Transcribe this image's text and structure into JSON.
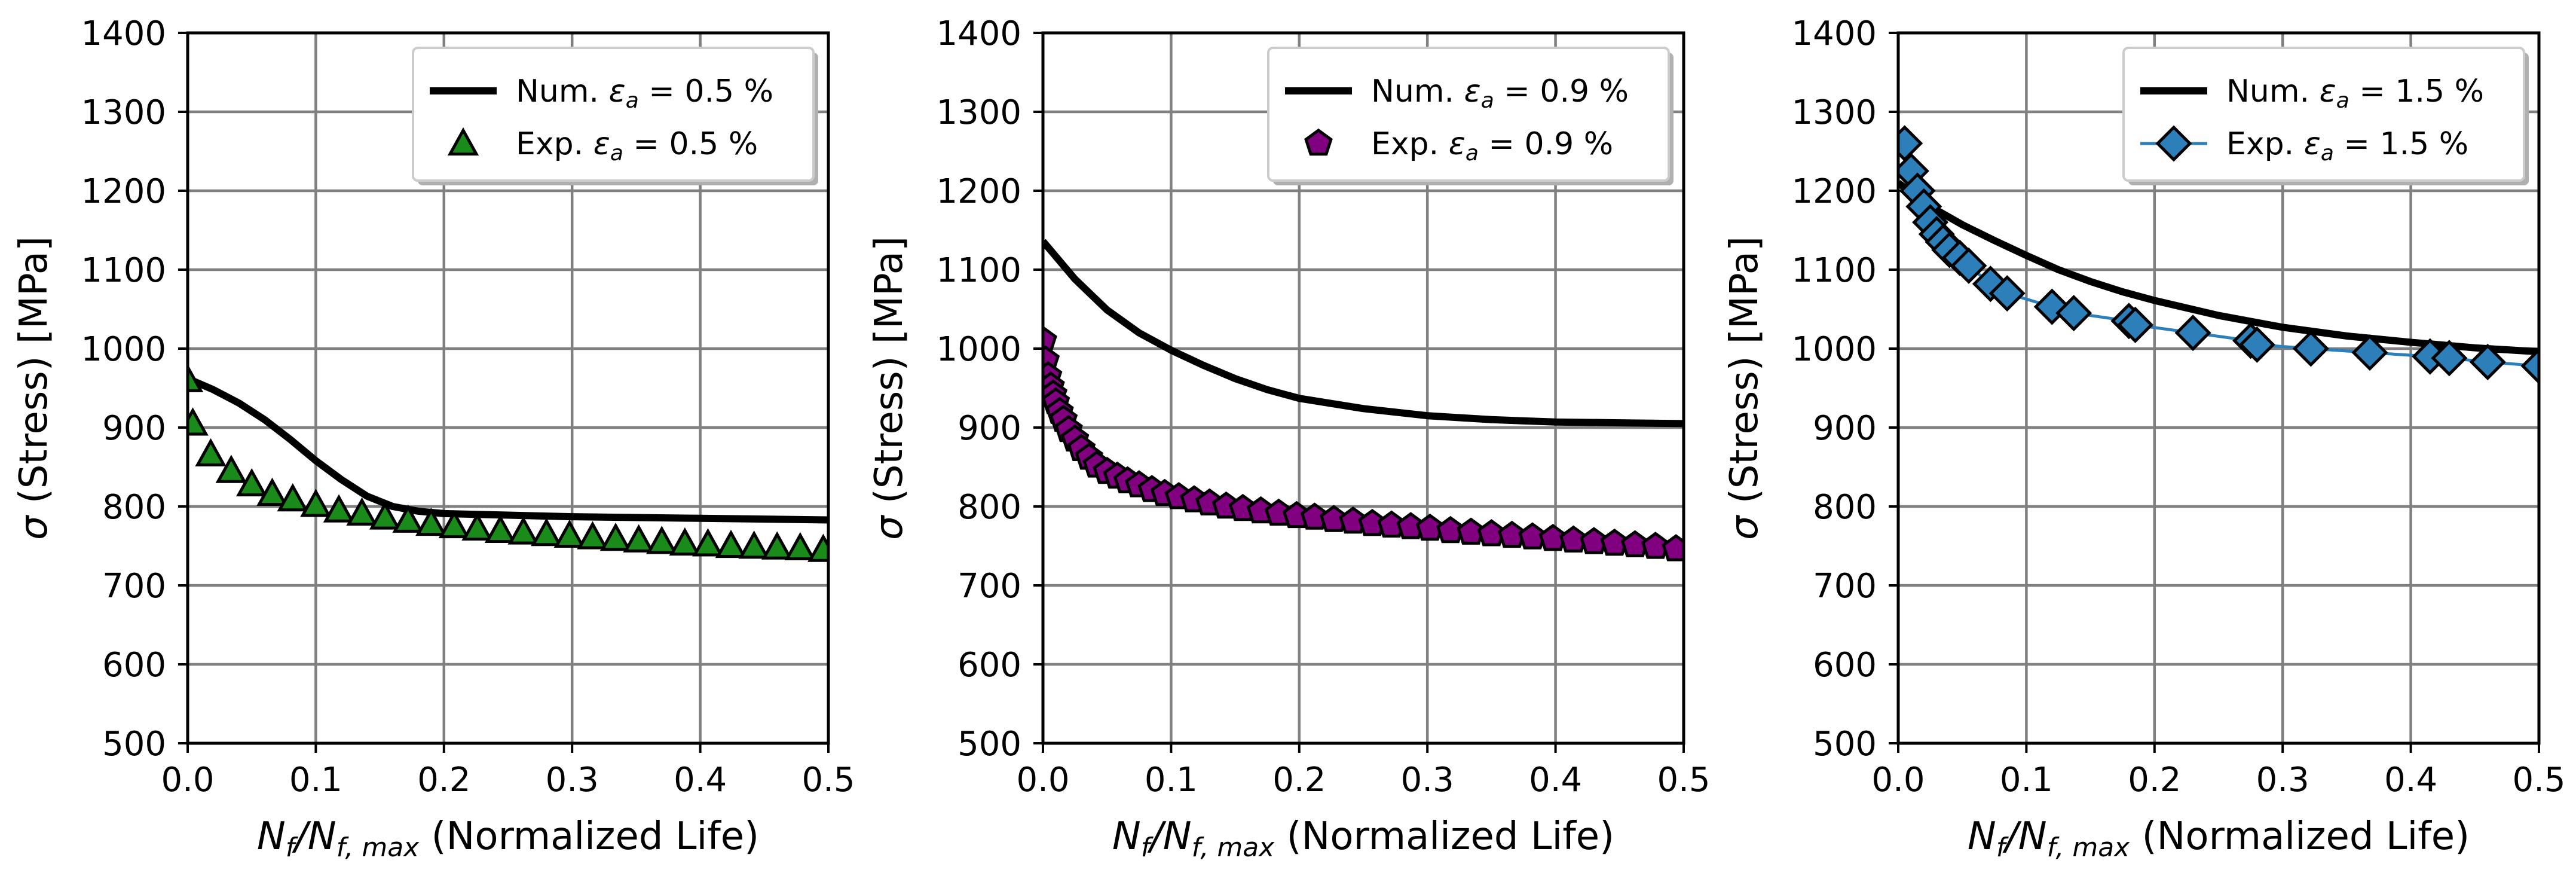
{
  "chart_data": [
    {
      "type": "line",
      "panel": "left",
      "xlabel": {
        "main": "N",
        "sub1": "f",
        "mid": "/N",
        "sub2": "f, max",
        "suffix": " (Normalized Life)"
      },
      "ylabel": {
        "sigma": "σ",
        "text": " (Stress) [MPa]"
      },
      "xlim": [
        0.0,
        0.5
      ],
      "ylim": [
        500,
        1400
      ],
      "xticks": [
        "0.0",
        "0.1",
        "0.2",
        "0.3",
        "0.4",
        "0.5"
      ],
      "yticks": [
        "500",
        "600",
        "700",
        "800",
        "900",
        "1000",
        "1100",
        "1200",
        "1300",
        "1400"
      ],
      "grid": true,
      "legend_position": "top-right",
      "legend": [
        {
          "prefix": "Num. ",
          "eps": "ε",
          "sub": "a",
          "suffix": " = 0.5 %"
        },
        {
          "prefix": "Exp. ",
          "eps": "ε",
          "sub": "a",
          "suffix": " = 0.5 %"
        }
      ],
      "colors": {
        "num_line": "#000000",
        "exp_marker": "#1a8a1a",
        "exp_line": "#2c7fb8"
      },
      "marker": "triangle",
      "exp_connecting_line": false,
      "series": [
        {
          "name": "Num.",
          "x": [
            0.0,
            0.02,
            0.04,
            0.06,
            0.08,
            0.1,
            0.12,
            0.14,
            0.16,
            0.18,
            0.2,
            0.25,
            0.3,
            0.35,
            0.4,
            0.45,
            0.5
          ],
          "y": [
            962,
            948,
            931,
            910,
            885,
            858,
            834,
            813,
            800,
            794,
            791,
            789,
            787,
            786,
            785,
            784,
            783
          ]
        },
        {
          "name": "Exp.",
          "x": [
            0.0,
            0.004,
            0.018,
            0.034,
            0.05,
            0.066,
            0.082,
            0.1,
            0.118,
            0.136,
            0.154,
            0.172,
            0.19,
            0.208,
            0.226,
            0.244,
            0.262,
            0.28,
            0.298,
            0.316,
            0.334,
            0.352,
            0.37,
            0.388,
            0.406,
            0.424,
            0.442,
            0.46,
            0.478,
            0.496
          ],
          "y": [
            960,
            905,
            866,
            845,
            828,
            816,
            809,
            802,
            795,
            791,
            786,
            782,
            778,
            775,
            772,
            769,
            767,
            765,
            763,
            761,
            759,
            757,
            755,
            753,
            752,
            750,
            749,
            748,
            747,
            745
          ]
        }
      ]
    },
    {
      "type": "line",
      "panel": "middle",
      "xlabel": {
        "main": "N",
        "sub1": "f",
        "mid": "/N",
        "sub2": "f, max",
        "suffix": " (Normalized Life)"
      },
      "ylabel": {
        "sigma": "σ",
        "text": " (Stress) [MPa]"
      },
      "xlim": [
        0.0,
        0.5
      ],
      "ylim": [
        500,
        1400
      ],
      "xticks": [
        "0.0",
        "0.1",
        "0.2",
        "0.3",
        "0.4",
        "0.5"
      ],
      "yticks": [
        "500",
        "600",
        "700",
        "800",
        "900",
        "1000",
        "1100",
        "1200",
        "1300",
        "1400"
      ],
      "grid": true,
      "legend_position": "top-right",
      "legend": [
        {
          "prefix": "Num. ",
          "eps": "ε",
          "sub": "a",
          "suffix": " = 0.9 %"
        },
        {
          "prefix": "Exp. ",
          "eps": "ε",
          "sub": "a",
          "suffix": " = 0.9 %"
        }
      ],
      "colors": {
        "num_line": "#000000",
        "exp_marker": "#800080",
        "exp_line": "#2c7fb8"
      },
      "marker": "pentagon",
      "exp_connecting_line": false,
      "series": [
        {
          "name": "Num.",
          "x": [
            0.0,
            0.025,
            0.05,
            0.075,
            0.1,
            0.125,
            0.15,
            0.175,
            0.2,
            0.25,
            0.3,
            0.35,
            0.4,
            0.45,
            0.5
          ],
          "y": [
            1136,
            1088,
            1049,
            1020,
            998,
            979,
            962,
            948,
            937,
            924,
            915,
            910,
            907,
            906,
            905
          ]
        },
        {
          "name": "Exp.",
          "x": [
            0.0,
            0.002,
            0.004,
            0.006,
            0.008,
            0.01,
            0.013,
            0.016,
            0.02,
            0.025,
            0.03,
            0.036,
            0.042,
            0.05,
            0.058,
            0.066,
            0.075,
            0.085,
            0.095,
            0.106,
            0.118,
            0.13,
            0.143,
            0.156,
            0.17,
            0.184,
            0.198,
            0.212,
            0.227,
            0.242,
            0.257,
            0.272,
            0.287,
            0.302,
            0.318,
            0.334,
            0.35,
            0.366,
            0.382,
            0.398,
            0.414,
            0.43,
            0.446,
            0.462,
            0.478,
            0.494
          ],
          "y": [
            1010,
            985,
            965,
            952,
            942,
            932,
            920,
            910,
            897,
            885,
            873,
            862,
            852,
            844,
            838,
            832,
            827,
            821,
            816,
            812,
            808,
            804,
            800,
            797,
            794,
            791,
            788,
            786,
            783,
            781,
            778,
            776,
            774,
            772,
            769,
            767,
            765,
            763,
            761,
            759,
            757,
            755,
            753,
            751,
            749,
            746
          ]
        }
      ]
    },
    {
      "type": "line",
      "panel": "right",
      "xlabel": {
        "main": "N",
        "sub1": "f",
        "mid": "/N",
        "sub2": "f, max",
        "suffix": " (Normalized Life)"
      },
      "ylabel": {
        "sigma": "σ",
        "text": " (Stress) [MPa]"
      },
      "xlim": [
        0.0,
        0.5
      ],
      "ylim": [
        500,
        1400
      ],
      "xticks": [
        "0.0",
        "0.1",
        "0.2",
        "0.3",
        "0.4",
        "0.5"
      ],
      "yticks": [
        "500",
        "600",
        "700",
        "800",
        "900",
        "1000",
        "1100",
        "1200",
        "1300",
        "1400"
      ],
      "grid": true,
      "legend_position": "top-right",
      "legend": [
        {
          "prefix": "Num. ",
          "eps": "ε",
          "sub": "a",
          "suffix": " = 1.5 %"
        },
        {
          "prefix": "Exp. ",
          "eps": "ε",
          "sub": "a",
          "suffix": " = 1.5 %"
        }
      ],
      "colors": {
        "num_line": "#000000",
        "exp_marker": "#2c7fb8",
        "exp_line": "#2c7fb8"
      },
      "marker": "diamond",
      "exp_connecting_line": true,
      "series": [
        {
          "name": "Num.",
          "x": [
            0.0,
            0.025,
            0.05,
            0.075,
            0.1,
            0.125,
            0.15,
            0.175,
            0.2,
            0.25,
            0.3,
            0.35,
            0.4,
            0.45,
            0.5
          ],
          "y": [
            1210,
            1180,
            1157,
            1137,
            1118,
            1100,
            1085,
            1072,
            1061,
            1042,
            1027,
            1016,
            1008,
            1001,
            996
          ]
        },
        {
          "name": "Exp.",
          "x": [
            0.005,
            0.01,
            0.015,
            0.02,
            0.025,
            0.03,
            0.035,
            0.04,
            0.048,
            0.055,
            0.072,
            0.085,
            0.12,
            0.137,
            0.18,
            0.185,
            0.23,
            0.275,
            0.28,
            0.322,
            0.368,
            0.415,
            0.43,
            0.46,
            0.5
          ],
          "y": [
            1260,
            1225,
            1200,
            1180,
            1160,
            1145,
            1135,
            1125,
            1115,
            1105,
            1082,
            1070,
            1053,
            1045,
            1035,
            1030,
            1020,
            1010,
            1005,
            1000,
            995,
            990,
            988,
            983,
            978
          ]
        }
      ]
    }
  ]
}
